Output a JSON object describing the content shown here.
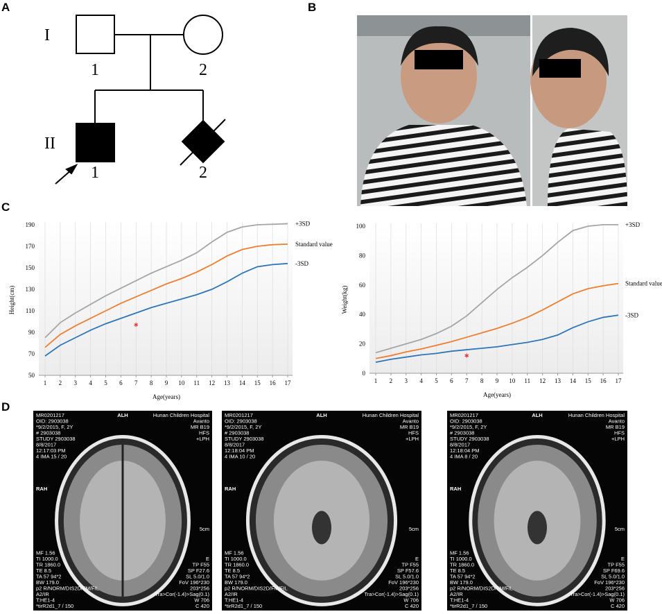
{
  "panel_labels": [
    "A",
    "B",
    "C",
    "D"
  ],
  "pedigree": {
    "generation_labels": [
      "I",
      "II"
    ],
    "individuals": [
      {
        "id": "1"
      },
      {
        "id": "2"
      },
      {
        "id": "1"
      },
      {
        "id": "2"
      }
    ]
  },
  "chart_data": [
    {
      "type": "line",
      "y_label": "Height(cm)",
      "x_label": "Age(years)",
      "x": [
        1,
        2,
        3,
        4,
        5,
        6,
        7,
        8,
        9,
        10,
        11,
        12,
        13,
        14,
        15,
        16,
        17
      ],
      "xlim": [
        1,
        17
      ],
      "xticks": [
        1,
        2,
        3,
        4,
        5,
        6,
        7,
        8,
        9,
        10,
        11,
        12,
        13,
        14,
        15,
        16,
        17
      ],
      "ylim": [
        50,
        190
      ],
      "yticks": [
        50,
        70,
        90,
        110,
        130,
        150,
        170,
        190
      ],
      "grid": true,
      "series": [
        {
          "name": "+3SD",
          "color": "#a5a5a5",
          "values": [
            85,
            99,
            108,
            116,
            124,
            131,
            138,
            145,
            151,
            157,
            164,
            174,
            183,
            188,
            190,
            190.5,
            191
          ]
        },
        {
          "name": "Standard value",
          "color": "#ed7d31",
          "values": [
            76,
            88,
            96,
            103,
            110,
            117,
            123,
            129,
            135,
            140,
            146,
            153,
            161,
            167,
            170,
            171.5,
            172
          ]
        },
        {
          "name": "-3SD",
          "color": "#2e75b6",
          "values": [
            68,
            78,
            85,
            92,
            98,
            103,
            108,
            113,
            117,
            121,
            125,
            130,
            137,
            145,
            151,
            153,
            154
          ]
        }
      ],
      "patient": {
        "x": 7,
        "y": 97,
        "color": "#e53935"
      }
    },
    {
      "type": "line",
      "y_label": "Weight(kg)",
      "x_label": "Age(years)",
      "x": [
        1,
        2,
        3,
        4,
        5,
        6,
        7,
        8,
        9,
        10,
        11,
        12,
        13,
        14,
        15,
        16,
        17
      ],
      "xlim": [
        1,
        17
      ],
      "xticks": [
        1,
        2,
        3,
        4,
        5,
        6,
        7,
        8,
        9,
        10,
        11,
        12,
        13,
        14,
        15,
        16,
        17
      ],
      "ylim": [
        0,
        100
      ],
      "yticks": [
        0,
        20,
        40,
        60,
        80,
        100
      ],
      "grid": true,
      "series": [
        {
          "name": "+3SD",
          "color": "#a5a5a5",
          "values": [
            14,
            17,
            20,
            23,
            27,
            32,
            39,
            48,
            57,
            65,
            72,
            80,
            89,
            97,
            100,
            101,
            101
          ]
        },
        {
          "name": "Standard value",
          "color": "#ed7d31",
          "values": [
            10,
            12,
            14.5,
            16.5,
            19,
            21.5,
            24.5,
            27.5,
            30.5,
            34,
            38,
            43,
            48.5,
            54,
            57.5,
            59.5,
            61
          ]
        },
        {
          "name": "-3SD",
          "color": "#2e75b6",
          "values": [
            7.5,
            9.5,
            11,
            12.5,
            13.5,
            15,
            16,
            17,
            18,
            19.5,
            21,
            23,
            26,
            31,
            35,
            38,
            39.5
          ]
        }
      ],
      "patient": {
        "x": 7,
        "y": 12,
        "color": "#e53935"
      }
    }
  ],
  "mri": [
    {
      "top_left": [
        "MR0201217",
        "OID: 2903038",
        "*9/2/2015, F, 2Y",
        "# 2903038",
        "STUDY 2903038",
        "8/8/2017",
        "12:17:03 PM",
        "4 IMA 15 / 20"
      ],
      "top_center": "ALH",
      "top_right": [
        "Hunan Children Hospital",
        "Avanto",
        "MR B19",
        "HFS",
        "+LPH"
      ],
      "left_mid": "RAH",
      "right_mid": "5cm",
      "bottom_left": [
        "MF 1.56",
        "TI 1000.0",
        "TR 1860.0",
        "TE 8.5",
        "TA 57 94*2",
        "BW 179.0",
        "p2 R/NORM/DIS2D/FM/FIL",
        "A2/IR",
        "T:HE1-4",
        "*tirR2d1_7 / 150"
      ],
      "bottom_right": [
        "E",
        "TP F55",
        "SP F27.6",
        "SL 5.0/1.0",
        "FoV 196*230",
        "203*256",
        "Tra>Cor(-1.4)>Sag(0.1)",
        "W 706",
        "C 420"
      ]
    },
    {
      "top_left": [
        "MR0201217",
        "OID: 2903038",
        "*9/2/2015, F, 2Y",
        "# 2903038",
        "STUDY 2903038",
        "8/8/2017",
        "12:18:04 PM",
        "4 IMA 10 / 20"
      ],
      "top_center": "ALH",
      "top_right": [
        "Hunan Children Hospital",
        "Avanto",
        "MR B19",
        "HFS",
        "+LPH"
      ],
      "left_mid": "RAH",
      "right_mid": "5cm",
      "bottom_left": [
        "MF 1.56",
        "TI 1000.0",
        "TR 1860.0",
        "TE 8.5",
        "TA 57 94*2",
        "BW 179.0",
        "p2 R/NORM/DIS2D/FM/FIL",
        "A2/IR",
        "T:HE1-4",
        "*tirR2d1_7 / 150"
      ],
      "bottom_right": [
        "E",
        "TP F55",
        "SP F57.6",
        "SL 5.0/1.0",
        "FoV 196*230",
        "203*256",
        "Tra>Cor(-1.4)>Sag(0.1)",
        "W 706",
        "C 420"
      ]
    },
    {
      "top_left": [
        "MR0201217",
        "OID: 2903038",
        "*9/2/2015, F, 2Y",
        "# 2903038",
        "STUDY 2903038",
        "8/8/2017",
        "12:18:04 PM",
        "4 IMA 8 / 20"
      ],
      "top_center": "ALH",
      "top_right": [
        "Hunan Children Hospital",
        "Avanto",
        "MR B19",
        "HFS",
        "+LPH"
      ],
      "left_mid": "RAH",
      "right_mid": "5cm",
      "bottom_left": [
        "MF 1.56",
        "TI 1000.0",
        "TR 1860.0",
        "TE 8.5",
        "TA 57 94*2",
        "BW 179.0",
        "p2 R/NORM/DIS2D/FM/FIL",
        "A2/IR",
        "T:HE1-4",
        "*tirR2d1_7 / 150"
      ],
      "bottom_right": [
        "E",
        "TP F55",
        "SP F69.6",
        "SL 5.0/1.0",
        "FoV 196*230",
        "203*256",
        "Tra>Cor(-1.4)>Sag(0.1)",
        "W 706",
        "C 420"
      ]
    }
  ]
}
